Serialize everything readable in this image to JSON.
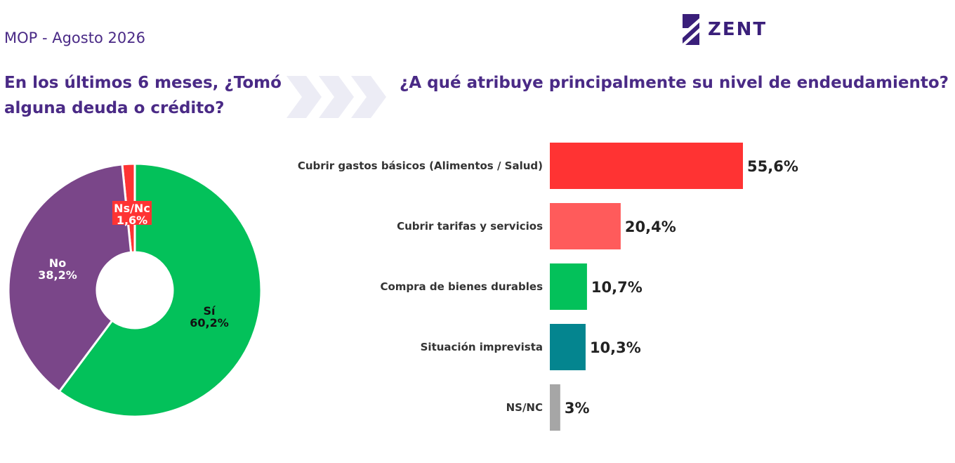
{
  "header": {
    "label": "MOP - Agosto 2026"
  },
  "logo": {
    "text": "ZENT",
    "icon": "zentrix-logo-icon"
  },
  "chart_data": [
    {
      "type": "pie",
      "title": "En los últimos 6 meses, ¿Tomó alguna deuda o crédito?",
      "slices": [
        {
          "label": "Sí",
          "value": 60.2,
          "display": "60,2%",
          "color": "#03c15a"
        },
        {
          "label": "No",
          "value": 38.2,
          "display": "38,2%",
          "color": "#7a4689"
        },
        {
          "label": "Ns/Nc",
          "value": 1.6,
          "display": "1,6%",
          "color": "#ff3333"
        }
      ]
    },
    {
      "type": "bar",
      "orientation": "horizontal",
      "title": "¿A qué atribuye principalmente su nivel de endeudamiento?",
      "categories": [
        "Cubrir gastos básicos (Alimentos / Salud)",
        "Cubrir tarifas y servicios",
        "Compra de bienes durables",
        "Situación imprevista",
        "NS/NC"
      ],
      "values": [
        55.6,
        20.4,
        10.7,
        10.3,
        3
      ],
      "labels": [
        "55,6%",
        "20,4%",
        "10,7%",
        "10,3%",
        "3%"
      ],
      "colors": [
        "#ff3333",
        "#ff5b5b",
        "#03c15a",
        "#04858f",
        "#a6a6a6"
      ]
    }
  ]
}
